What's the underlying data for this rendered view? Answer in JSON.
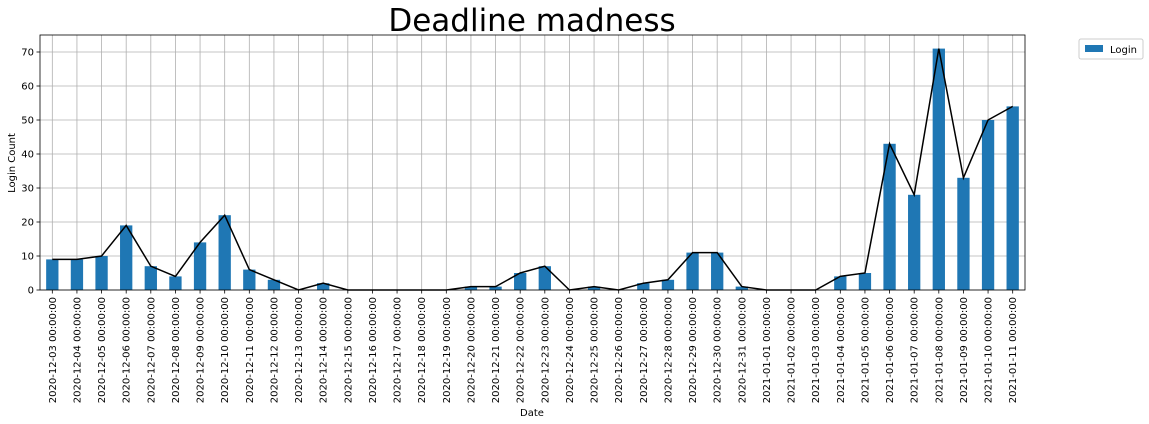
{
  "chart_data": {
    "type": "bar",
    "title": "Deadline madness",
    "xlabel": "Date",
    "ylabel": "Login Count",
    "ylim": [
      0,
      75
    ],
    "yticks": [
      0,
      10,
      20,
      30,
      40,
      50,
      60,
      70
    ],
    "grid": true,
    "legend_position": "outside-top-right",
    "categories": [
      "2020-12-03 00:00:00",
      "2020-12-04 00:00:00",
      "2020-12-05 00:00:00",
      "2020-12-06 00:00:00",
      "2020-12-07 00:00:00",
      "2020-12-08 00:00:00",
      "2020-12-09 00:00:00",
      "2020-12-10 00:00:00",
      "2020-12-11 00:00:00",
      "2020-12-12 00:00:00",
      "2020-12-13 00:00:00",
      "2020-12-14 00:00:00",
      "2020-12-15 00:00:00",
      "2020-12-16 00:00:00",
      "2020-12-17 00:00:00",
      "2020-12-18 00:00:00",
      "2020-12-19 00:00:00",
      "2020-12-20 00:00:00",
      "2020-12-21 00:00:00",
      "2020-12-22 00:00:00",
      "2020-12-23 00:00:00",
      "2020-12-24 00:00:00",
      "2020-12-25 00:00:00",
      "2020-12-26 00:00:00",
      "2020-12-27 00:00:00",
      "2020-12-28 00:00:00",
      "2020-12-29 00:00:00",
      "2020-12-30 00:00:00",
      "2020-12-31 00:00:00",
      "2021-01-01 00:00:00",
      "2021-01-02 00:00:00",
      "2021-01-03 00:00:00",
      "2021-01-04 00:00:00",
      "2021-01-05 00:00:00",
      "2021-01-06 00:00:00",
      "2021-01-07 00:00:00",
      "2021-01-08 00:00:00",
      "2021-01-09 00:00:00",
      "2021-01-10 00:00:00",
      "2021-01-11 00:00:00"
    ],
    "series": [
      {
        "name": "Login",
        "kind": "bar",
        "color": "#1f77b4",
        "values": [
          9,
          9,
          10,
          19,
          7,
          4,
          14,
          22,
          6,
          3,
          0,
          2,
          0,
          0,
          0,
          0,
          0,
          1,
          1,
          5,
          7,
          0,
          1,
          0,
          2,
          3,
          11,
          11,
          1,
          0,
          0,
          0,
          4,
          5,
          43,
          28,
          71,
          33,
          50,
          54
        ]
      },
      {
        "kind": "line",
        "color": "#000000",
        "values": [
          9,
          9,
          10,
          19,
          7,
          4,
          14,
          22,
          6,
          3,
          0,
          2,
          0,
          0,
          0,
          0,
          0,
          1,
          1,
          5,
          7,
          0,
          1,
          0,
          2,
          3,
          11,
          11,
          1,
          0,
          0,
          0,
          4,
          5,
          43,
          28,
          71,
          33,
          50,
          54
        ]
      }
    ]
  }
}
